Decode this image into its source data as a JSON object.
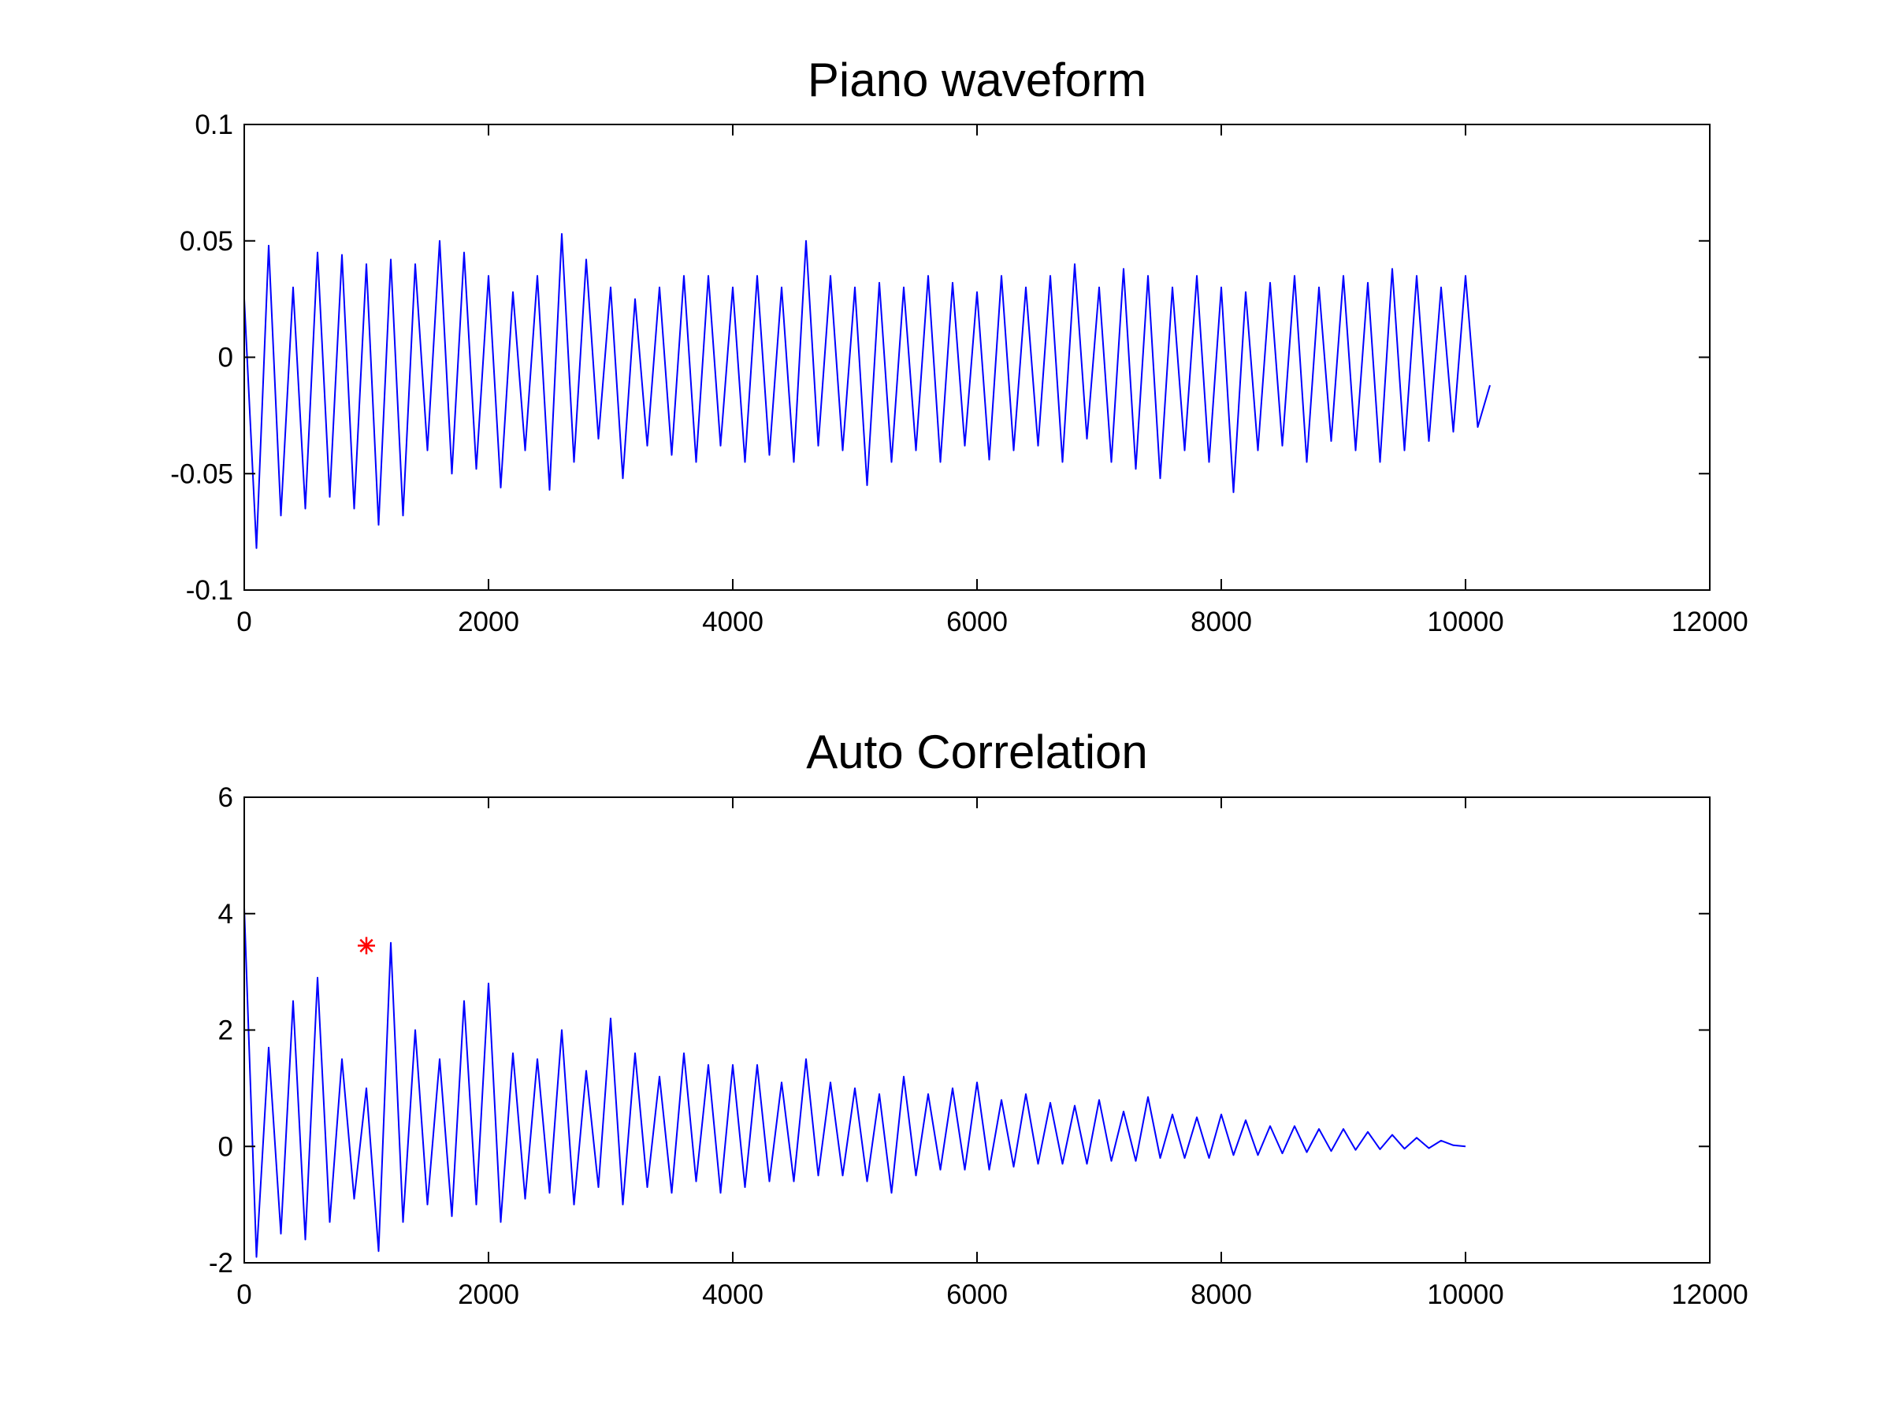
{
  "chart_data": [
    {
      "type": "line",
      "title": "Piano waveform",
      "xlabel": "",
      "ylabel": "",
      "xlim": [
        0,
        12000
      ],
      "ylim": [
        -0.1,
        0.1
      ],
      "xticks": [
        0,
        2000,
        4000,
        6000,
        8000,
        10000,
        12000
      ],
      "yticks": [
        -0.1,
        -0.05,
        0,
        0.05,
        0.1
      ],
      "xtick_labels": [
        "0",
        "2000",
        "4000",
        "6000",
        "8000",
        "10000",
        "12000"
      ],
      "ytick_labels": [
        "-0.1",
        "-0.05",
        "0",
        "0.05",
        "0.1"
      ],
      "grid": false,
      "series": [
        {
          "color": "#0000ff",
          "x_start": 0,
          "x_step": 100,
          "values": [
            0.025,
            -0.082,
            0.048,
            -0.068,
            0.03,
            -0.065,
            0.045,
            -0.06,
            0.044,
            -0.065,
            0.04,
            -0.072,
            0.042,
            -0.068,
            0.04,
            -0.04,
            0.05,
            -0.05,
            0.045,
            -0.048,
            0.035,
            -0.056,
            0.028,
            -0.04,
            0.035,
            -0.057,
            0.053,
            -0.045,
            0.042,
            -0.035,
            0.03,
            -0.052,
            0.025,
            -0.038,
            0.03,
            -0.042,
            0.035,
            -0.045,
            0.035,
            -0.038,
            0.03,
            -0.045,
            0.035,
            -0.042,
            0.03,
            -0.045,
            0.05,
            -0.038,
            0.035,
            -0.04,
            0.03,
            -0.055,
            0.032,
            -0.045,
            0.03,
            -0.04,
            0.035,
            -0.045,
            0.032,
            -0.038,
            0.028,
            -0.044,
            0.035,
            -0.04,
            0.03,
            -0.038,
            0.035,
            -0.045,
            0.04,
            -0.035,
            0.03,
            -0.045,
            0.038,
            -0.048,
            0.035,
            -0.052,
            0.03,
            -0.04,
            0.035,
            -0.045,
            0.03,
            -0.058,
            0.028,
            -0.04,
            0.032,
            -0.038,
            0.035,
            -0.045,
            0.03,
            -0.036,
            0.035,
            -0.04,
            0.032,
            -0.045,
            0.038,
            -0.04,
            0.035,
            -0.036,
            0.03,
            -0.032,
            0.035,
            -0.03,
            -0.012
          ]
        }
      ]
    },
    {
      "type": "line",
      "title": "Auto Correlation",
      "xlabel": "",
      "ylabel": "",
      "xlim": [
        0,
        12000
      ],
      "ylim": [
        -2,
        6
      ],
      "xticks": [
        0,
        2000,
        4000,
        6000,
        8000,
        10000,
        12000
      ],
      "yticks": [
        -2,
        0,
        2,
        4,
        6
      ],
      "xtick_labels": [
        "0",
        "2000",
        "4000",
        "6000",
        "8000",
        "10000",
        "12000"
      ],
      "ytick_labels": [
        "-2",
        "0",
        "2",
        "4",
        "6"
      ],
      "grid": false,
      "series": [
        {
          "color": "#0000ff",
          "x_start": 0,
          "x_step": 100,
          "values": [
            4.1,
            -1.9,
            1.7,
            -1.5,
            2.5,
            -1.6,
            2.9,
            -1.3,
            1.5,
            -0.9,
            1.0,
            -1.8,
            3.5,
            -1.3,
            2.0,
            -1.0,
            1.5,
            -1.2,
            2.5,
            -1.0,
            2.8,
            -1.3,
            1.6,
            -0.9,
            1.5,
            -0.8,
            2.0,
            -1.0,
            1.3,
            -0.7,
            2.2,
            -1.0,
            1.6,
            -0.7,
            1.2,
            -0.8,
            1.6,
            -0.6,
            1.4,
            -0.8,
            1.4,
            -0.7,
            1.4,
            -0.6,
            1.1,
            -0.6,
            1.5,
            -0.5,
            1.1,
            -0.5,
            1.0,
            -0.6,
            0.9,
            -0.8,
            1.2,
            -0.5,
            0.9,
            -0.4,
            1.0,
            -0.4,
            1.1,
            -0.4,
            0.8,
            -0.35,
            0.9,
            -0.3,
            0.75,
            -0.3,
            0.7,
            -0.3,
            0.8,
            -0.25,
            0.6,
            -0.25,
            0.85,
            -0.2,
            0.55,
            -0.2,
            0.5,
            -0.2,
            0.55,
            -0.15,
            0.45,
            -0.15,
            0.35,
            -0.12,
            0.35,
            -0.1,
            0.3,
            -0.08,
            0.3,
            -0.06,
            0.25,
            -0.05,
            0.2,
            -0.04,
            0.15,
            -0.03,
            0.1,
            0.02,
            0.0
          ]
        }
      ],
      "marker": {
        "x": 1000,
        "y": 3.45,
        "color": "#ff0000",
        "symbol": "asterisk"
      }
    }
  ]
}
